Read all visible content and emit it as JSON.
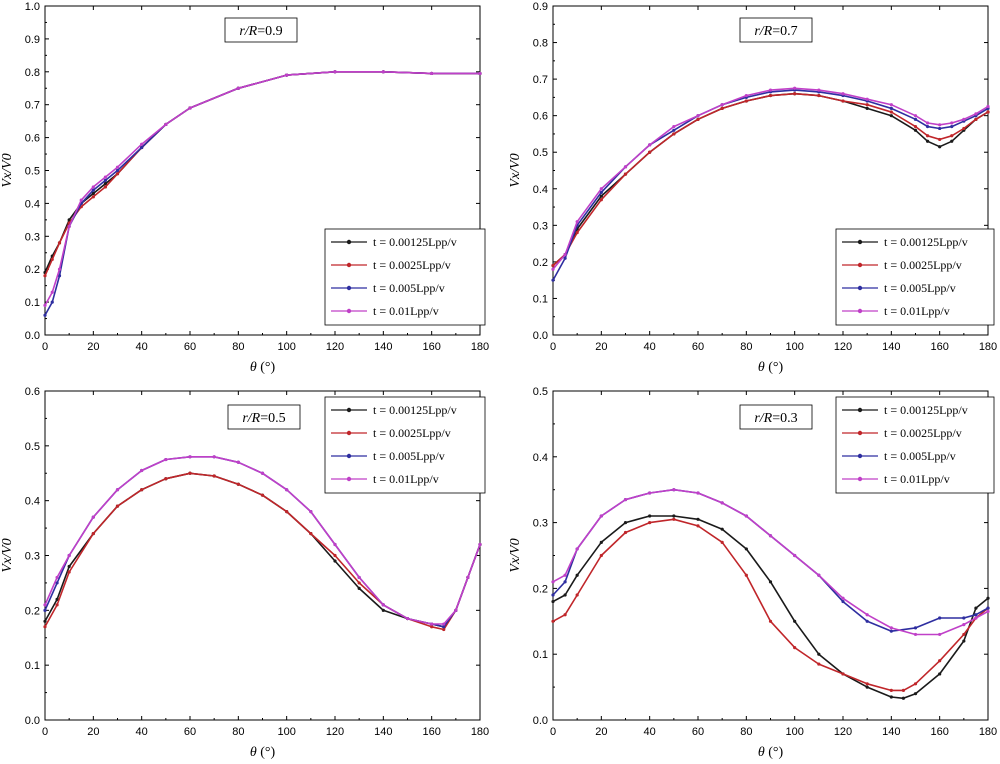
{
  "chart_data": [
    {
      "type": "line",
      "annotation_prefix": "r/R",
      "annotation_value": "=0.9",
      "xlabel_symbol": "θ",
      "xlabel_unit": "(°)",
      "ylabel": "Vx/V0",
      "xlim": [
        0,
        180
      ],
      "ylim": [
        0,
        1.0
      ],
      "xticks": [
        "0",
        "20",
        "40",
        "60",
        "80",
        "100",
        "120",
        "140",
        "160",
        "180"
      ],
      "yticks": [
        "0.0",
        "0.1",
        "0.2",
        "0.3",
        "0.4",
        "0.5",
        "0.6",
        "0.7",
        "0.8",
        "0.9",
        "1.0"
      ],
      "legend_position": "bottom-right",
      "series": [
        {
          "name": "t = 0.00125Lpp/v",
          "color": "#1a1a1a",
          "x": [
            0,
            3,
            6,
            10,
            15,
            20,
            25,
            30,
            40,
            50,
            60,
            80,
            100,
            120,
            140,
            160,
            180
          ],
          "y": [
            0.19,
            0.24,
            0.28,
            0.35,
            0.4,
            0.43,
            0.46,
            0.49,
            0.57,
            0.64,
            0.69,
            0.75,
            0.79,
            0.8,
            0.8,
            0.795,
            0.795
          ]
        },
        {
          "name": "t = 0.0025Lpp/v",
          "color": "#c0262a",
          "x": [
            0,
            3,
            6,
            10,
            15,
            20,
            25,
            30,
            40,
            50,
            60,
            80,
            100,
            120,
            140,
            160,
            180
          ],
          "y": [
            0.18,
            0.23,
            0.28,
            0.34,
            0.39,
            0.42,
            0.45,
            0.49,
            0.57,
            0.64,
            0.69,
            0.75,
            0.79,
            0.8,
            0.8,
            0.795,
            0.795
          ]
        },
        {
          "name": "t = 0.005Lpp/v",
          "color": "#2e2ea0",
          "x": [
            0,
            3,
            6,
            10,
            15,
            20,
            25,
            30,
            40,
            50,
            60,
            80,
            100,
            120,
            140,
            160,
            180
          ],
          "y": [
            0.06,
            0.1,
            0.18,
            0.33,
            0.4,
            0.44,
            0.47,
            0.5,
            0.57,
            0.64,
            0.69,
            0.75,
            0.79,
            0.8,
            0.8,
            0.795,
            0.795
          ]
        },
        {
          "name": "t = 0.01Lpp/v",
          "color": "#c040c8",
          "x": [
            0,
            3,
            6,
            10,
            15,
            20,
            25,
            30,
            40,
            50,
            60,
            80,
            100,
            120,
            140,
            160,
            180
          ],
          "y": [
            0.09,
            0.13,
            0.2,
            0.33,
            0.41,
            0.45,
            0.48,
            0.51,
            0.58,
            0.64,
            0.69,
            0.75,
            0.79,
            0.8,
            0.8,
            0.795,
            0.795
          ]
        }
      ],
      "legend": [
        "t = 0.00125Lpp/v",
        "t = 0.0025Lpp/v",
        "t = 0.005Lpp/v",
        "t = 0.01Lpp/v"
      ]
    },
    {
      "type": "line",
      "annotation_prefix": "r/R",
      "annotation_value": "=0.7",
      "xlabel_symbol": "θ",
      "xlabel_unit": "(°)",
      "ylabel": "Vx/V0",
      "xlim": [
        0,
        180
      ],
      "ylim": [
        0,
        0.9
      ],
      "xticks": [
        "0",
        "20",
        "40",
        "60",
        "80",
        "100",
        "120",
        "140",
        "160",
        "180"
      ],
      "yticks": [
        "0.0",
        "0.1",
        "0.2",
        "0.3",
        "0.4",
        "0.5",
        "0.6",
        "0.7",
        "0.8",
        "0.9"
      ],
      "legend_position": "bottom-right",
      "series": [
        {
          "name": "t = 0.00125Lpp/v",
          "color": "#1a1a1a",
          "x": [
            0,
            5,
            10,
            20,
            30,
            40,
            50,
            60,
            70,
            80,
            90,
            100,
            110,
            120,
            130,
            140,
            150,
            155,
            160,
            165,
            170,
            175,
            180
          ],
          "y": [
            0.19,
            0.22,
            0.29,
            0.38,
            0.44,
            0.5,
            0.55,
            0.59,
            0.62,
            0.64,
            0.655,
            0.66,
            0.655,
            0.64,
            0.62,
            0.6,
            0.56,
            0.53,
            0.515,
            0.53,
            0.56,
            0.59,
            0.61
          ]
        },
        {
          "name": "t = 0.0025Lpp/v",
          "color": "#c0262a",
          "x": [
            0,
            5,
            10,
            20,
            30,
            40,
            50,
            60,
            70,
            80,
            90,
            100,
            110,
            120,
            130,
            140,
            150,
            155,
            160,
            165,
            170,
            175,
            180
          ],
          "y": [
            0.19,
            0.22,
            0.28,
            0.37,
            0.44,
            0.5,
            0.55,
            0.59,
            0.62,
            0.64,
            0.655,
            0.66,
            0.655,
            0.64,
            0.63,
            0.61,
            0.57,
            0.545,
            0.535,
            0.545,
            0.565,
            0.59,
            0.61
          ]
        },
        {
          "name": "t = 0.005Lpp/v",
          "color": "#2e2ea0",
          "x": [
            0,
            5,
            10,
            20,
            30,
            40,
            50,
            60,
            70,
            80,
            90,
            100,
            110,
            120,
            130,
            140,
            150,
            155,
            160,
            165,
            170,
            175,
            180
          ],
          "y": [
            0.15,
            0.21,
            0.3,
            0.39,
            0.46,
            0.52,
            0.56,
            0.6,
            0.63,
            0.65,
            0.665,
            0.67,
            0.665,
            0.655,
            0.64,
            0.62,
            0.59,
            0.57,
            0.565,
            0.57,
            0.585,
            0.6,
            0.62
          ]
        },
        {
          "name": "t = 0.01Lpp/v",
          "color": "#c040c8",
          "x": [
            0,
            5,
            10,
            20,
            30,
            40,
            50,
            60,
            70,
            80,
            90,
            100,
            110,
            120,
            130,
            140,
            150,
            155,
            160,
            165,
            170,
            175,
            180
          ],
          "y": [
            0.18,
            0.22,
            0.31,
            0.4,
            0.46,
            0.52,
            0.57,
            0.6,
            0.63,
            0.655,
            0.67,
            0.675,
            0.67,
            0.66,
            0.645,
            0.63,
            0.6,
            0.58,
            0.575,
            0.58,
            0.59,
            0.605,
            0.625
          ]
        }
      ],
      "legend": [
        "t = 0.00125Lpp/v",
        "t = 0.0025Lpp/v",
        "t = 0.005Lpp/v",
        "t = 0.01Lpp/v"
      ]
    },
    {
      "type": "line",
      "annotation_prefix": "r/R",
      "annotation_value": "=0.5",
      "xlabel_symbol": "θ",
      "xlabel_unit": "(°)",
      "ylabel": "Vx/V0",
      "xlim": [
        0,
        180
      ],
      "ylim": [
        0,
        0.6
      ],
      "xticks": [
        "0",
        "20",
        "40",
        "60",
        "80",
        "100",
        "120",
        "140",
        "160",
        "180"
      ],
      "yticks": [
        "0.0",
        "0.1",
        "0.2",
        "0.3",
        "0.4",
        "0.5",
        "0.6"
      ],
      "legend_position": "top-right",
      "series": [
        {
          "name": "t = 0.00125Lpp/v",
          "color": "#1a1a1a",
          "x": [
            0,
            5,
            10,
            20,
            30,
            40,
            50,
            60,
            70,
            80,
            90,
            100,
            110,
            120,
            130,
            140,
            150,
            160,
            165,
            170,
            175,
            180
          ],
          "y": [
            0.18,
            0.22,
            0.28,
            0.34,
            0.39,
            0.42,
            0.44,
            0.45,
            0.445,
            0.43,
            0.41,
            0.38,
            0.34,
            0.29,
            0.24,
            0.2,
            0.185,
            0.175,
            0.17,
            0.2,
            0.26,
            0.32
          ]
        },
        {
          "name": "t = 0.0025Lpp/v",
          "color": "#c0262a",
          "x": [
            0,
            5,
            10,
            20,
            30,
            40,
            50,
            60,
            70,
            80,
            90,
            100,
            110,
            120,
            130,
            140,
            150,
            160,
            165,
            170,
            175,
            180
          ],
          "y": [
            0.17,
            0.21,
            0.27,
            0.34,
            0.39,
            0.42,
            0.44,
            0.45,
            0.445,
            0.43,
            0.41,
            0.38,
            0.34,
            0.3,
            0.25,
            0.21,
            0.185,
            0.17,
            0.165,
            0.2,
            0.26,
            0.32
          ]
        },
        {
          "name": "t = 0.005Lpp/v",
          "color": "#2e2ea0",
          "x": [
            0,
            5,
            10,
            20,
            30,
            40,
            50,
            60,
            70,
            80,
            90,
            100,
            110,
            120,
            130,
            140,
            150,
            160,
            165,
            170,
            175,
            180
          ],
          "y": [
            0.2,
            0.25,
            0.3,
            0.37,
            0.42,
            0.455,
            0.475,
            0.48,
            0.48,
            0.47,
            0.45,
            0.42,
            0.38,
            0.32,
            0.26,
            0.21,
            0.185,
            0.175,
            0.17,
            0.2,
            0.26,
            0.32
          ]
        },
        {
          "name": "t = 0.01Lpp/v",
          "color": "#c040c8",
          "x": [
            0,
            5,
            10,
            20,
            30,
            40,
            50,
            60,
            70,
            80,
            90,
            100,
            110,
            120,
            130,
            140,
            150,
            160,
            165,
            170,
            175,
            180
          ],
          "y": [
            0.21,
            0.26,
            0.3,
            0.37,
            0.42,
            0.455,
            0.475,
            0.48,
            0.48,
            0.47,
            0.45,
            0.42,
            0.38,
            0.32,
            0.26,
            0.21,
            0.185,
            0.175,
            0.175,
            0.2,
            0.26,
            0.32
          ]
        }
      ],
      "legend": [
        "t = 0.00125Lpp/v",
        "t = 0.0025Lpp/v",
        "t = 0.005Lpp/v",
        "t = 0.01Lpp/v"
      ]
    },
    {
      "type": "line",
      "annotation_prefix": "r/R",
      "annotation_value": "=0.3",
      "xlabel_symbol": "θ",
      "xlabel_unit": "(°)",
      "ylabel": "Vx/V0",
      "xlim": [
        0,
        180
      ],
      "ylim": [
        0,
        0.5
      ],
      "xticks": [
        "0",
        "20",
        "40",
        "60",
        "80",
        "100",
        "120",
        "140",
        "160",
        "180"
      ],
      "yticks": [
        "0.0",
        "0.1",
        "0.2",
        "0.3",
        "0.4",
        "0.5"
      ],
      "legend_position": "top-right",
      "series": [
        {
          "name": "t = 0.00125Lpp/v",
          "color": "#1a1a1a",
          "x": [
            0,
            5,
            10,
            20,
            30,
            40,
            50,
            60,
            70,
            80,
            90,
            100,
            110,
            120,
            130,
            140,
            145,
            150,
            160,
            170,
            175,
            180
          ],
          "y": [
            0.18,
            0.19,
            0.22,
            0.27,
            0.3,
            0.31,
            0.31,
            0.305,
            0.29,
            0.26,
            0.21,
            0.15,
            0.1,
            0.07,
            0.05,
            0.035,
            0.033,
            0.04,
            0.07,
            0.12,
            0.17,
            0.185
          ]
        },
        {
          "name": "t = 0.0025Lpp/v",
          "color": "#c0262a",
          "x": [
            0,
            5,
            10,
            20,
            30,
            40,
            50,
            60,
            70,
            80,
            90,
            100,
            110,
            120,
            130,
            140,
            145,
            150,
            160,
            170,
            175,
            180
          ],
          "y": [
            0.15,
            0.16,
            0.19,
            0.25,
            0.285,
            0.3,
            0.305,
            0.295,
            0.27,
            0.22,
            0.15,
            0.11,
            0.085,
            0.07,
            0.055,
            0.045,
            0.045,
            0.055,
            0.09,
            0.13,
            0.155,
            0.17
          ]
        },
        {
          "name": "t = 0.005Lpp/v",
          "color": "#2e2ea0",
          "x": [
            0,
            5,
            10,
            20,
            30,
            40,
            50,
            60,
            70,
            80,
            90,
            100,
            110,
            120,
            130,
            140,
            150,
            160,
            170,
            175,
            180
          ],
          "y": [
            0.19,
            0.21,
            0.26,
            0.31,
            0.335,
            0.345,
            0.35,
            0.345,
            0.33,
            0.31,
            0.28,
            0.25,
            0.22,
            0.18,
            0.15,
            0.135,
            0.14,
            0.155,
            0.155,
            0.16,
            0.17
          ]
        },
        {
          "name": "t = 0.01Lpp/v",
          "color": "#c040c8",
          "x": [
            0,
            5,
            10,
            20,
            30,
            40,
            50,
            60,
            70,
            80,
            90,
            100,
            110,
            120,
            130,
            140,
            150,
            160,
            170,
            175,
            180
          ],
          "y": [
            0.21,
            0.22,
            0.26,
            0.31,
            0.335,
            0.345,
            0.35,
            0.345,
            0.33,
            0.31,
            0.28,
            0.25,
            0.22,
            0.185,
            0.16,
            0.14,
            0.13,
            0.13,
            0.145,
            0.155,
            0.165
          ]
        }
      ],
      "legend": [
        "t = 0.00125Lpp/v",
        "t = 0.0025Lpp/v",
        "t = 0.005Lpp/v",
        "t = 0.01Lpp/v"
      ]
    }
  ]
}
